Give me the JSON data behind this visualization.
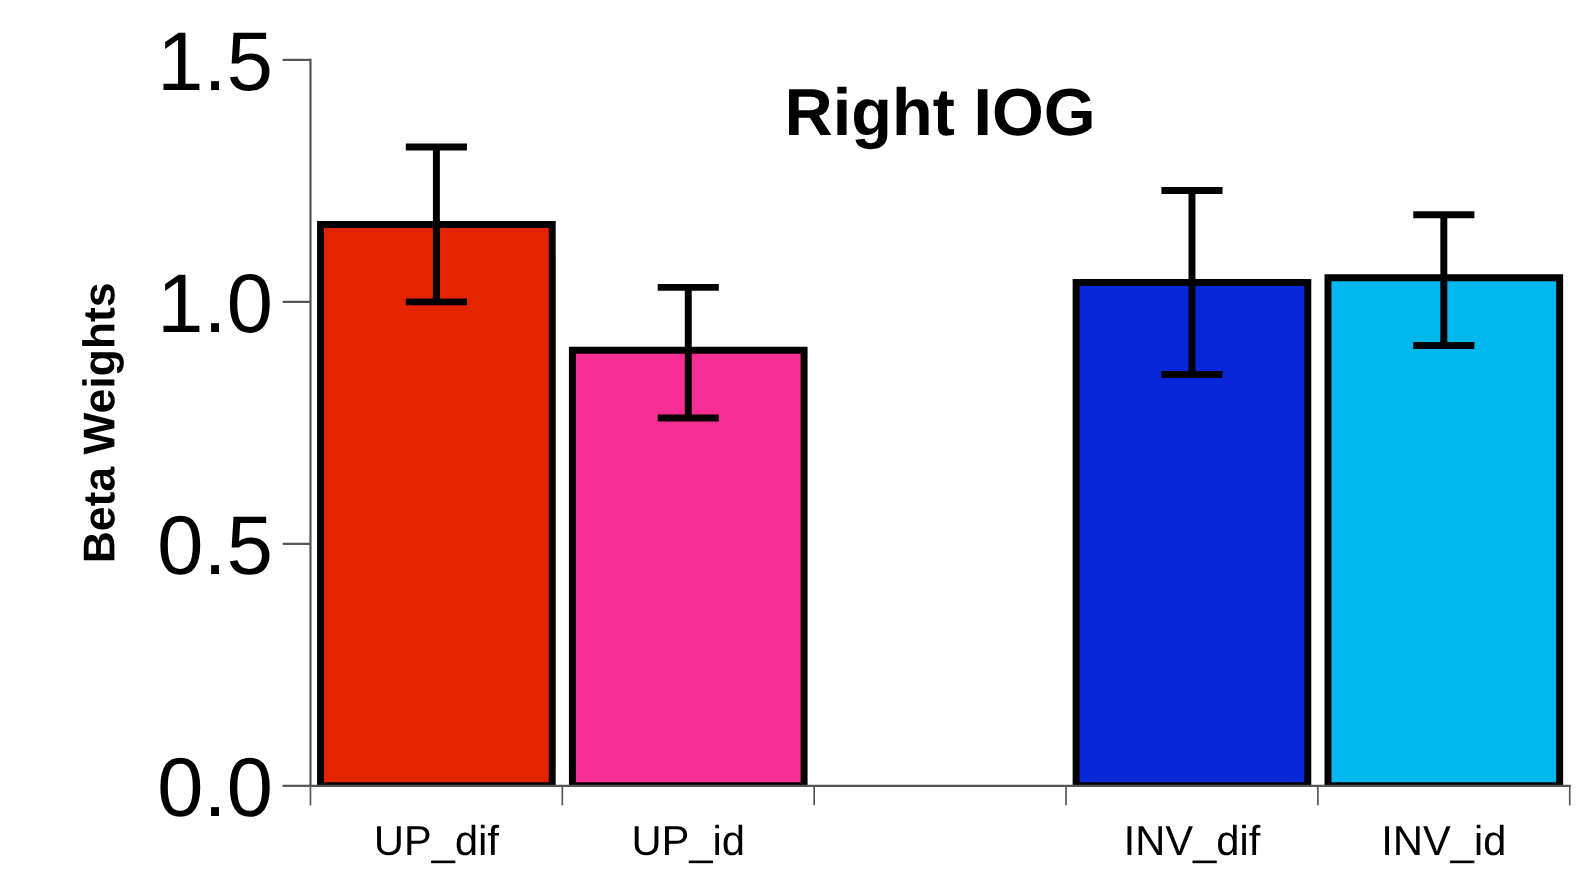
{
  "chart_data": {
    "type": "bar",
    "title": "Right IOG",
    "ylabel": "Beta Weights",
    "categories": [
      "UP_dif",
      "UP_id",
      null,
      "INV_dif",
      "INV_id"
    ],
    "values": [
      1.16,
      0.9,
      null,
      1.04,
      1.05
    ],
    "colors": [
      "#e42300",
      "#f72f94",
      null,
      "#0827d9",
      "#00b8ee"
    ],
    "errors": [
      [
        1.0,
        1.32
      ],
      [
        0.76,
        1.03
      ],
      null,
      [
        0.85,
        1.23
      ],
      [
        0.91,
        1.18
      ]
    ],
    "ylim": [
      0,
      1.5
    ],
    "yticks": [
      {
        "value": 0,
        "label": "0.0"
      },
      {
        "value": 0.5,
        "label": "0.5"
      },
      {
        "value": 1,
        "label": "1.0"
      },
      {
        "value": 1.5,
        "label": "1.5"
      }
    ],
    "grid": false
  }
}
